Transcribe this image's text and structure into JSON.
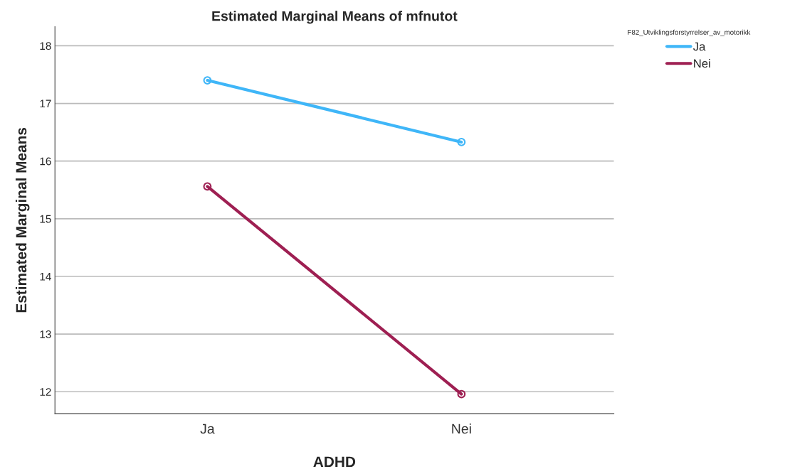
{
  "chart_data": {
    "type": "line",
    "title": "Estimated Marginal Means of mfnutot",
    "xlabel": "ADHD",
    "ylabel": "Estimated Marginal Means",
    "legend_title": "F82_Utviklingsforstyrrelser_av_motorikk",
    "categories": [
      "Ja",
      "Nei"
    ],
    "series": [
      {
        "name": "Ja",
        "color": "#3fb6f8",
        "values": [
          17.4,
          16.33
        ]
      },
      {
        "name": "Nei",
        "color": "#9e1f52",
        "values": [
          15.56,
          11.96
        ]
      }
    ],
    "ylim": [
      11.62,
      18.33
    ],
    "yticks": [
      12,
      13,
      14,
      15,
      16,
      17,
      18
    ],
    "grid": "y",
    "legend": "top right",
    "marker": "circle",
    "line_style": "solid"
  }
}
